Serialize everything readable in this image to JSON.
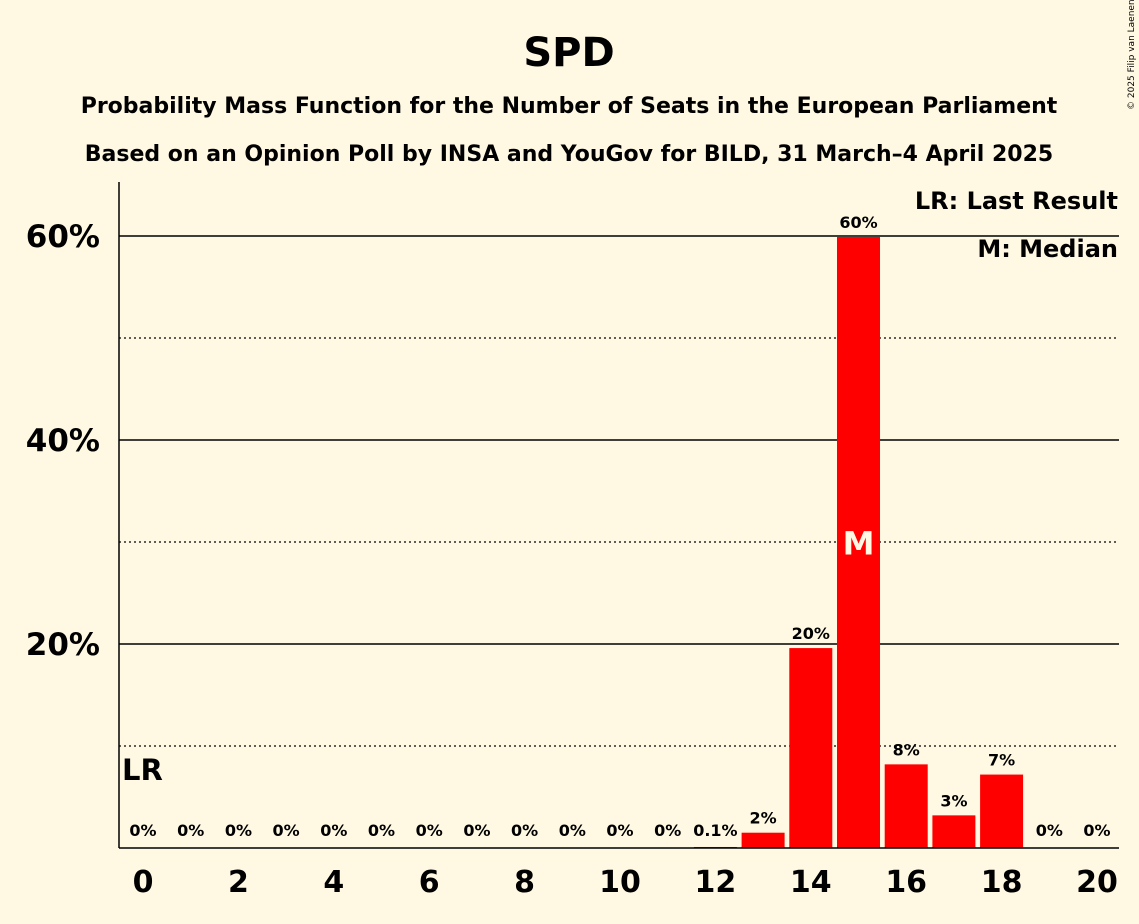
{
  "copyright": "© 2025 Filip van Laenen",
  "legend": {
    "last_result": "LR: Last Result",
    "median": "M: Median"
  },
  "markers": {
    "last_result": "LR",
    "median": "M",
    "last_result_seat": 0,
    "median_seat": 15
  },
  "colors": {
    "background": "#FFF9E3",
    "bar": "#FF0000",
    "axis": "#000000"
  },
  "chart_data": {
    "type": "bar",
    "title": "SPD",
    "subtitle_lines": [
      "Probability Mass Function for the Number of Seats in the European Parliament",
      "Based on an Opinion Poll by INSA and YouGov for BILD, 31 March–4 April 2025"
    ],
    "xlabel": "",
    "ylabel": "",
    "categories": [
      0,
      1,
      2,
      3,
      4,
      5,
      6,
      7,
      8,
      9,
      10,
      11,
      12,
      13,
      14,
      15,
      16,
      17,
      18,
      19,
      20
    ],
    "values": [
      0,
      0,
      0,
      0,
      0,
      0,
      0,
      0,
      0,
      0,
      0,
      0,
      0.1,
      1.5,
      19.6,
      59.9,
      8.2,
      3.2,
      7.2,
      0,
      0
    ],
    "data_labels": [
      "0%",
      "0%",
      "0%",
      "0%",
      "0%",
      "0%",
      "0%",
      "0%",
      "0%",
      "0%",
      "0%",
      "0%",
      "0.1%",
      "2%",
      "20%",
      "60%",
      "8%",
      "3%",
      "7%",
      "0%",
      "0%"
    ],
    "x_tick_labels": [
      "0",
      "2",
      "4",
      "6",
      "8",
      "10",
      "12",
      "14",
      "16",
      "18",
      "20"
    ],
    "y_tick_labels": [
      "20%",
      "40%",
      "60%"
    ],
    "y_major_ticks": [
      20,
      40,
      60
    ],
    "y_minor_ticks": [
      10,
      30,
      50
    ],
    "ylim": [
      0,
      65
    ],
    "grid": true,
    "legend_position": "top-right"
  }
}
